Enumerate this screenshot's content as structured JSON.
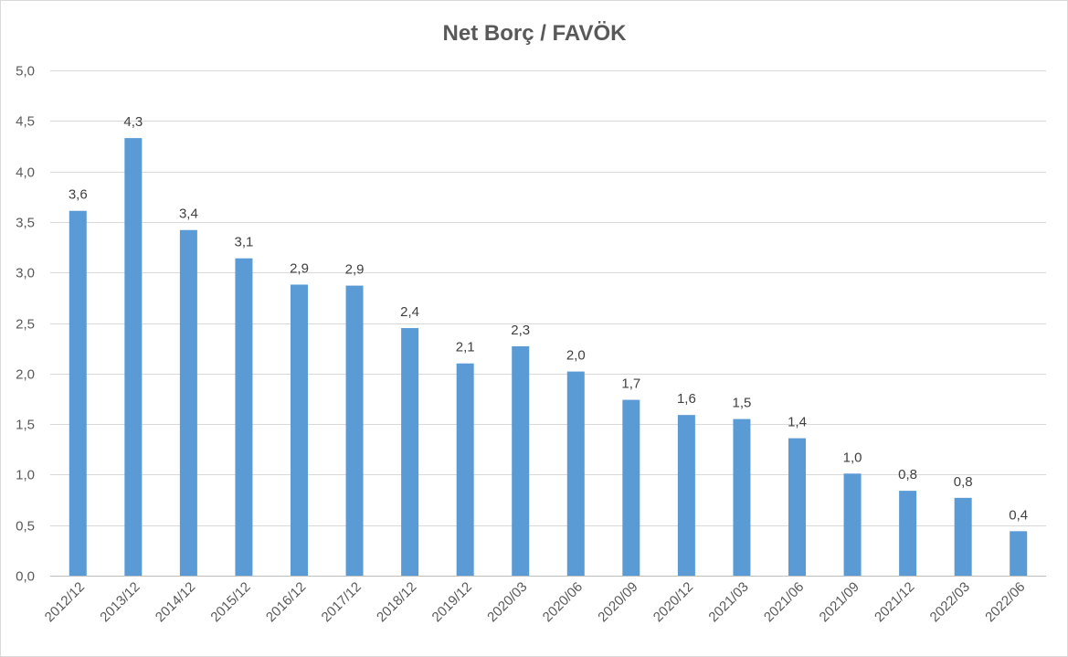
{
  "chart_data": {
    "type": "bar",
    "title": "Net Borç / FAVÖK",
    "xlabel": "",
    "ylabel": "",
    "ylim": [
      0,
      5
    ],
    "grid": true,
    "legend": "none",
    "bar_color": "#5b9bd5",
    "y_ticks": [
      "0,0",
      "0,5",
      "1,0",
      "1,5",
      "2,0",
      "2,5",
      "3,0",
      "3,5",
      "4,0",
      "4,5",
      "5,0"
    ],
    "categories": [
      "2012/12",
      "2013/12",
      "2014/12",
      "2015/12",
      "2016/12",
      "2017/12",
      "2018/12",
      "2019/12",
      "2020/03",
      "2020/06",
      "2020/09",
      "2020/12",
      "2021/03",
      "2021/06",
      "2021/09",
      "2021/12",
      "2022/03",
      "2022/06"
    ],
    "values": [
      3.61,
      4.33,
      3.42,
      3.14,
      2.88,
      2.87,
      2.45,
      2.1,
      2.27,
      2.02,
      1.74,
      1.59,
      1.55,
      1.36,
      1.01,
      0.84,
      0.77,
      0.44
    ],
    "data_labels": [
      "3,6",
      "4,3",
      "3,4",
      "3,1",
      "2,9",
      "2,9",
      "2,4",
      "2,1",
      "2,3",
      "2,0",
      "1,7",
      "1,6",
      "1,5",
      "1,4",
      "1,0",
      "0,8",
      "0,8",
      "0,4"
    ]
  }
}
